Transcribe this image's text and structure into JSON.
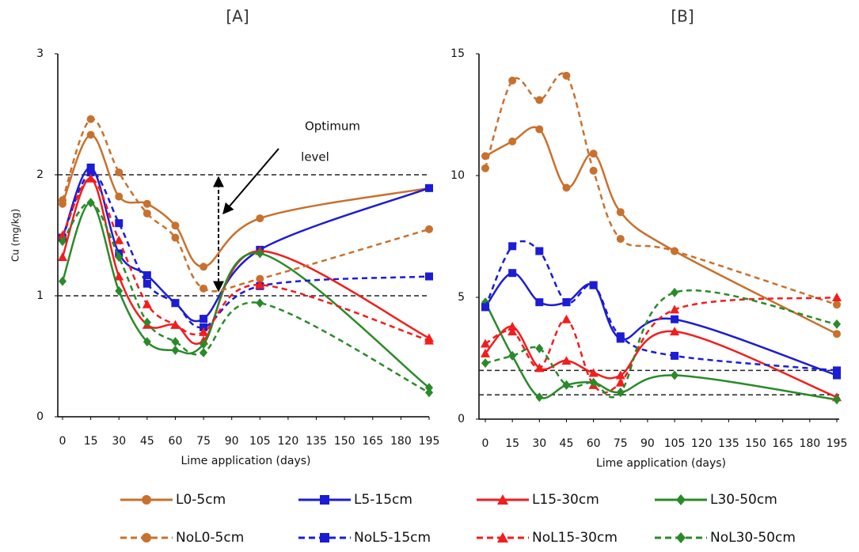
{
  "chart_data": [
    {
      "type": "line",
      "title": "[A]",
      "x_label": "Lime application (days)",
      "y_label": "Cu (mg/kg)",
      "annotation": [
        "Optimum",
        "level"
      ],
      "x": [
        0,
        15,
        30,
        45,
        60,
        75,
        105,
        195
      ],
      "xlim": [
        0,
        195
      ],
      "xticks": [
        0,
        15,
        30,
        45,
        60,
        75,
        90,
        105,
        120,
        135,
        150,
        165,
        180,
        195
      ],
      "ylim": [
        0,
        3
      ],
      "yticks": [
        0,
        1,
        2,
        3
      ],
      "ref_lines": [
        1,
        2
      ],
      "series": [
        {
          "name": "L0-5cm",
          "color": "#c8712e",
          "marker": "circle",
          "dashed": false,
          "values": [
            1.76,
            2.33,
            1.82,
            1.76,
            1.58,
            1.24,
            1.64,
            1.89
          ]
        },
        {
          "name": "L5-15cm",
          "color": "#1c1cd4",
          "marker": "square",
          "dashed": false,
          "values": [
            1.48,
            2.06,
            1.35,
            1.17,
            0.94,
            0.81,
            1.38,
            1.89
          ]
        },
        {
          "name": "L15-30cm",
          "color": "#f21d1d",
          "marker": "triangle",
          "dashed": false,
          "values": [
            1.32,
            1.97,
            1.16,
            0.76,
            0.76,
            0.63,
            1.37,
            0.65
          ]
        },
        {
          "name": "L30-50cm",
          "color": "#2a8a2a",
          "marker": "diamond",
          "dashed": false,
          "values": [
            1.12,
            1.77,
            1.04,
            0.62,
            0.55,
            0.6,
            1.35,
            0.24
          ]
        },
        {
          "name": "NoL0-5cm",
          "color": "#c8712e",
          "marker": "circle",
          "dashed": true,
          "values": [
            1.79,
            2.46,
            2.02,
            1.68,
            1.48,
            1.06,
            1.14,
            1.55
          ]
        },
        {
          "name": "NoL5-15cm",
          "color": "#1c1cd4",
          "marker": "square",
          "dashed": true,
          "values": [
            1.48,
            2.02,
            1.6,
            1.1,
            0.94,
            0.74,
            1.08,
            1.16
          ]
        },
        {
          "name": "NoL15-30cm",
          "color": "#f21d1d",
          "marker": "triangle",
          "dashed": true,
          "values": [
            1.5,
            1.97,
            1.46,
            0.93,
            0.76,
            0.7,
            1.09,
            0.63
          ]
        },
        {
          "name": "NoL30-50cm",
          "color": "#2a8a2a",
          "marker": "diamond",
          "dashed": true,
          "values": [
            1.45,
            1.77,
            1.32,
            0.78,
            0.62,
            0.53,
            0.94,
            0.2
          ]
        }
      ]
    },
    {
      "type": "line",
      "title": "[B]",
      "x_label": "Lime application (days)",
      "x": [
        0,
        15,
        30,
        45,
        60,
        75,
        105,
        195
      ],
      "xlim": [
        0,
        195
      ],
      "xticks": [
        0,
        15,
        30,
        45,
        60,
        75,
        90,
        105,
        120,
        135,
        150,
        165,
        180,
        195
      ],
      "ylim": [
        0,
        15
      ],
      "yticks": [
        0,
        5,
        10,
        15
      ],
      "ref_lines": [
        1,
        2
      ],
      "series": [
        {
          "name": "L0-5cm",
          "color": "#c8712e",
          "marker": "circle",
          "dashed": false,
          "values": [
            10.8,
            11.4,
            11.9,
            9.5,
            10.9,
            8.5,
            6.9,
            3.5
          ]
        },
        {
          "name": "L5-15cm",
          "color": "#1c1cd4",
          "marker": "square",
          "dashed": false,
          "values": [
            4.6,
            6.0,
            4.8,
            4.8,
            5.5,
            3.3,
            4.1,
            1.8
          ]
        },
        {
          "name": "L15-30cm",
          "color": "#f21d1d",
          "marker": "triangle",
          "dashed": false,
          "values": [
            2.7,
            3.8,
            2.1,
            2.4,
            1.9,
            1.8,
            3.6,
            0.9
          ]
        },
        {
          "name": "L30-50cm",
          "color": "#2a8a2a",
          "marker": "diamond",
          "dashed": false,
          "values": [
            4.8,
            2.6,
            0.9,
            1.4,
            1.5,
            1.1,
            1.8,
            0.8
          ]
        },
        {
          "name": "NoL0-5cm",
          "color": "#c8712e",
          "marker": "circle",
          "dashed": true,
          "values": [
            10.3,
            13.9,
            13.1,
            14.1,
            10.2,
            7.4,
            6.9,
            4.7
          ]
        },
        {
          "name": "NoL5-15cm",
          "color": "#1c1cd4",
          "marker": "square",
          "dashed": true,
          "values": [
            4.6,
            7.1,
            6.9,
            4.8,
            5.5,
            3.4,
            2.6,
            2.0
          ]
        },
        {
          "name": "NoL15-30cm",
          "color": "#f21d1d",
          "marker": "triangle",
          "dashed": true,
          "values": [
            3.1,
            3.6,
            2.1,
            4.1,
            1.4,
            1.5,
            4.5,
            5.0
          ]
        },
        {
          "name": "NoL30-50cm",
          "color": "#2a8a2a",
          "marker": "diamond",
          "dashed": true,
          "values": [
            2.3,
            2.6,
            2.9,
            1.4,
            1.5,
            1.1,
            5.2,
            3.9
          ]
        }
      ]
    }
  ]
}
